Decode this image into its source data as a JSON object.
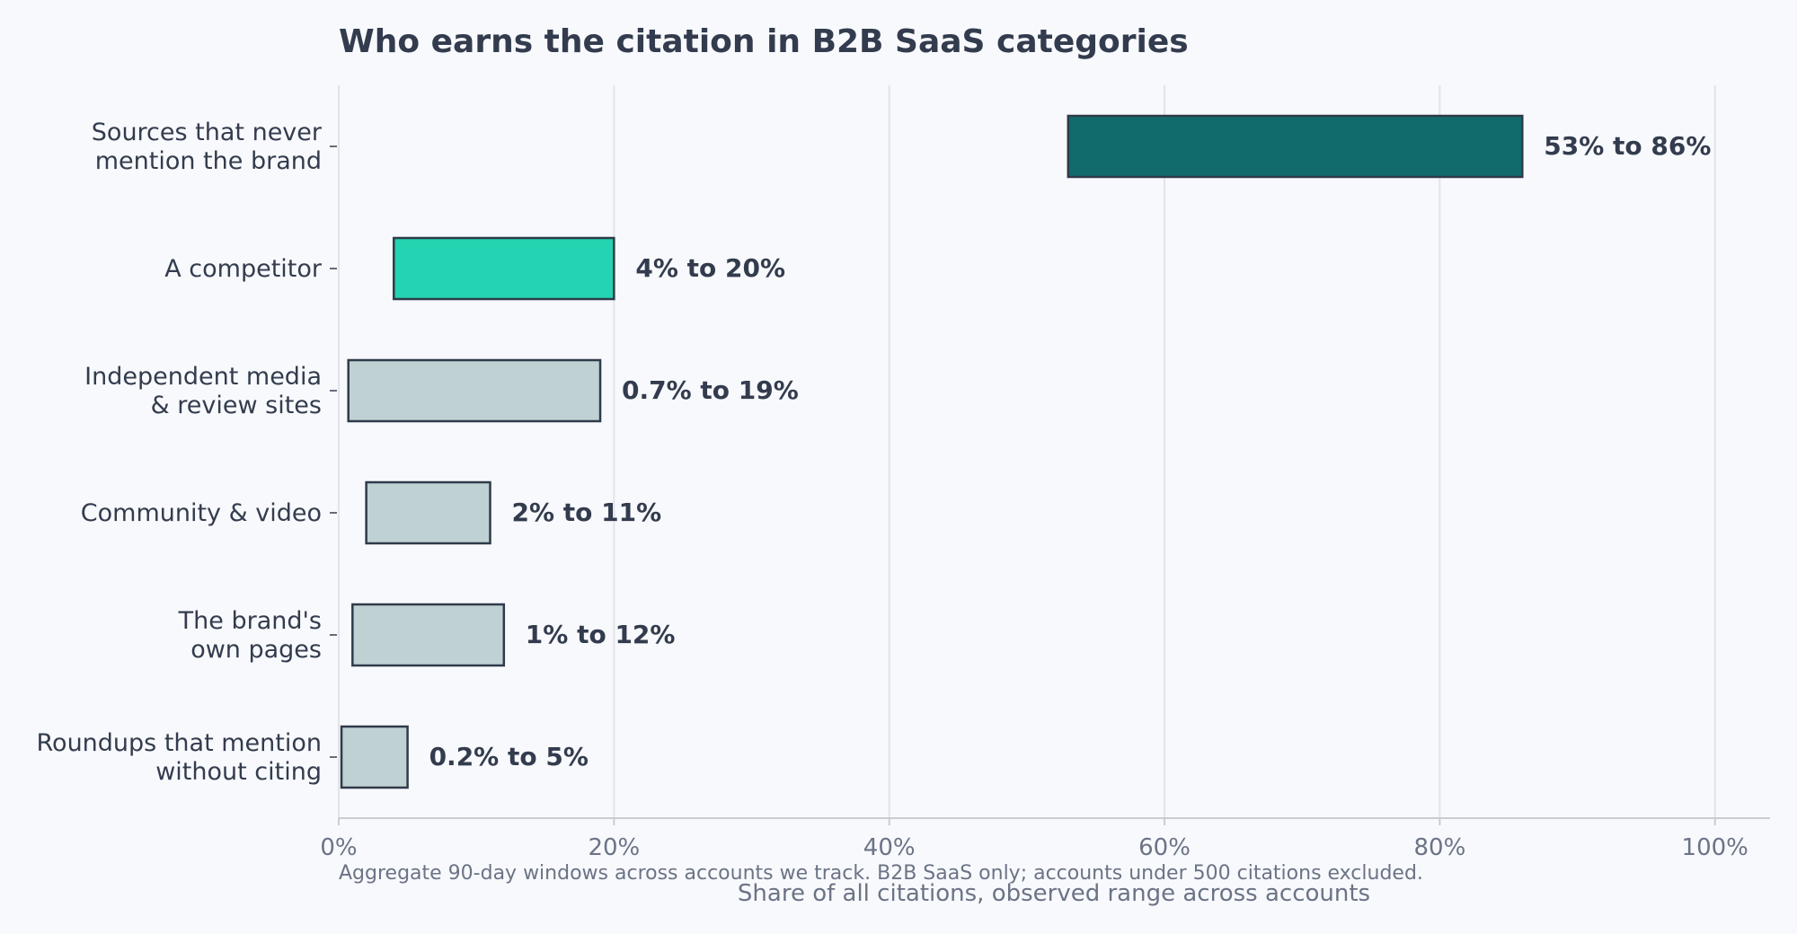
{
  "chart_data": {
    "type": "bar",
    "orientation": "horizontal",
    "style": "floating range bars",
    "title": "Who earns the citation in B2B SaaS categories",
    "xlabel": "Share of all citations, observed range across accounts",
    "ylabel": "",
    "footnote": "Aggregate 90-day windows across accounts we track. B2B SaaS only; accounts under 500 citations excluded.",
    "xlim": [
      0,
      104
    ],
    "xticks": [
      0,
      20,
      40,
      60,
      80,
      100
    ],
    "xtick_labels": [
      "0%",
      "20%",
      "40%",
      "60%",
      "80%",
      "100%"
    ],
    "grid": "vertical gridlines",
    "categories": [
      [
        "Sources that never",
        "mention the brand"
      ],
      [
        "A competitor"
      ],
      [
        "Independent media",
        "& review sites"
      ],
      [
        "Community & video"
      ],
      [
        "The brand's",
        "own pages"
      ],
      [
        "Roundups that mention",
        "without citing"
      ]
    ],
    "ranges": [
      {
        "low": 53,
        "high": 86,
        "label": "53% to 86%",
        "color": "#116b6c"
      },
      {
        "low": 4,
        "high": 20,
        "label": "4% to 20%",
        "color": "#24d3b1"
      },
      {
        "low": 0.7,
        "high": 19,
        "label": "0.7% to 19%",
        "color": "#bfd1d3"
      },
      {
        "low": 2,
        "high": 11,
        "label": "2% to 11%",
        "color": "#bfd1d3"
      },
      {
        "low": 1,
        "high": 12,
        "label": "1% to 12%",
        "color": "#bfd1d3"
      },
      {
        "low": 0.2,
        "high": 5,
        "label": "0.2% to 5%",
        "color": "#bfd1d3"
      }
    ],
    "colors": {
      "background": "#f8f9fc",
      "text": "#333c4e",
      "muted_text": "#6b7386",
      "grid": "#e2e4ea",
      "axis": "#c9ccd4",
      "bar_edge": "#2f3a4a"
    }
  }
}
